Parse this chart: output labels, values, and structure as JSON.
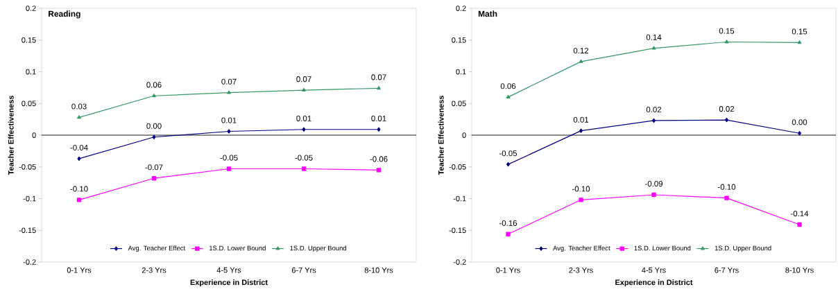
{
  "chart_data": [
    {
      "type": "line",
      "title": "Reading",
      "xlabel": "Experience in District",
      "ylabel": "Teacher Effectiveness",
      "categories": [
        "0-1 Yrs",
        "2-3 Yrs",
        "4-5 Yrs",
        "6-7 Yrs",
        "8-10 Yrs"
      ],
      "series": [
        {
          "name": "Avg. Teacher Effect",
          "color": "#000080",
          "marker": "diamond",
          "values": [
            -0.037,
            -0.003,
            0.006,
            0.009,
            0.009
          ],
          "value_labels": [
            "-0.04",
            "0.00",
            "0.01",
            "0.01",
            "0.01"
          ]
        },
        {
          "name": "1S.D. Lower Bound",
          "color": "#ff00ff",
          "marker": "square",
          "values": [
            -0.102,
            -0.068,
            -0.053,
            -0.053,
            -0.055
          ],
          "value_labels": [
            "-0.10",
            "-0.07",
            "-0.05",
            "-0.05",
            "-0.06"
          ]
        },
        {
          "name": "1S.D. Upper Bound",
          "color": "#339966",
          "marker": "triangle",
          "values": [
            0.028,
            0.062,
            0.067,
            0.071,
            0.074
          ],
          "value_labels": [
            "0.03",
            "0.06",
            "0.07",
            "0.07",
            "0.07"
          ]
        }
      ],
      "ylim": [
        -0.2,
        0.2
      ],
      "yticks": [
        -0.2,
        -0.15,
        -0.1,
        -0.05,
        0,
        0.05,
        0.1,
        0.15,
        0.2
      ],
      "legend": "bottom"
    },
    {
      "type": "line",
      "title": "Math",
      "xlabel": "Experience in District",
      "ylabel": "Teacher Effectiveness",
      "categories": [
        "0-1 Yrs",
        "2-3 Yrs",
        "4-5 Yrs",
        "6-7 Yrs",
        "8-10 Yrs"
      ],
      "series": [
        {
          "name": "Avg. Teacher Effect",
          "color": "#000080",
          "marker": "diamond",
          "values": [
            -0.046,
            0.007,
            0.023,
            0.024,
            0.003
          ],
          "value_labels": [
            "-0.05",
            "0.01",
            "0.02",
            "0.02",
            "0.00"
          ]
        },
        {
          "name": "1S.D. Lower Bound",
          "color": "#ff00ff",
          "marker": "square",
          "values": [
            -0.156,
            -0.102,
            -0.094,
            -0.099,
            -0.141
          ],
          "value_labels": [
            "-0.16",
            "-0.10",
            "-0.09",
            "-0.10",
            "-0.14"
          ]
        },
        {
          "name": "1S.D. Upper Bound",
          "color": "#339966",
          "marker": "triangle",
          "values": [
            0.06,
            0.116,
            0.137,
            0.147,
            0.146
          ],
          "value_labels": [
            "0.06",
            "0.12",
            "0.14",
            "0.15",
            "0.15"
          ]
        }
      ],
      "ylim": [
        -0.2,
        0.2
      ],
      "yticks": [
        -0.2,
        -0.15,
        -0.1,
        -0.05,
        0,
        0.05,
        0.1,
        0.15,
        0.2
      ],
      "legend": "bottom"
    }
  ]
}
